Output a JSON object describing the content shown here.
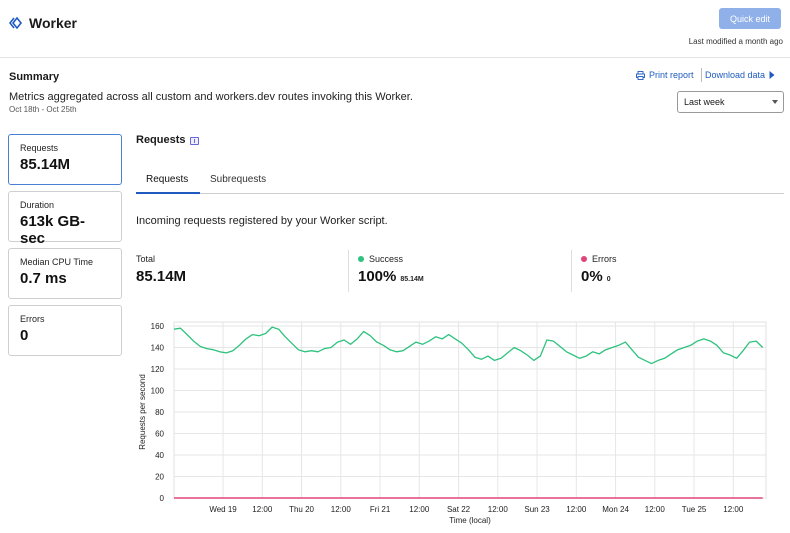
{
  "header": {
    "title": "Worker",
    "quick_edit_label": "Quick edit",
    "last_modified": "Last modified a month ago"
  },
  "summary": {
    "title": "Summary",
    "description": "Metrics aggregated across all custom and workers.dev routes invoking this Worker.",
    "dates": "Oct 18th - Oct 25th",
    "print_report_label": "Print report",
    "download_data_label": "Download data",
    "range_selected": "Last week"
  },
  "metrics": [
    {
      "label": "Requests",
      "value": "85.14M"
    },
    {
      "label": "Duration",
      "value": "613k GB-sec"
    },
    {
      "label": "Median CPU Time",
      "value": "0.7 ms"
    },
    {
      "label": "Errors",
      "value": "0"
    }
  ],
  "requests_panel": {
    "title": "Requests",
    "tabs": [
      "Requests",
      "Subrequests"
    ],
    "description": "Incoming requests registered by your Worker script.",
    "stats": {
      "total": {
        "label": "Total",
        "value": "85.14M"
      },
      "success": {
        "label": "Success",
        "value": "100%",
        "sub": "85.14M"
      },
      "errors": {
        "label": "Errors",
        "value": "0%",
        "sub": "0"
      }
    }
  },
  "colors": {
    "accent": "#1f5bc1",
    "success": "#2ec27e",
    "errors": "#e0457b",
    "quick_edit_bg": "#8fb0e8"
  },
  "chart_data": {
    "type": "line",
    "title": "",
    "xlabel": "Time (local)",
    "ylabel": "Requests per second",
    "ylim": [
      0,
      160
    ],
    "yticks": [
      0,
      20,
      40,
      60,
      80,
      100,
      120,
      140,
      160
    ],
    "xlim": [
      -15,
      166
    ],
    "x_ticks": [
      {
        "x": 0,
        "label": "Wed 19"
      },
      {
        "x": 12,
        "label": "12:00"
      },
      {
        "x": 24,
        "label": "Thu 20"
      },
      {
        "x": 36,
        "label": "12:00"
      },
      {
        "x": 48,
        "label": "Fri 21"
      },
      {
        "x": 60,
        "label": "12:00"
      },
      {
        "x": 72,
        "label": "Sat 22"
      },
      {
        "x": 84,
        "label": "12:00"
      },
      {
        "x": 96,
        "label": "Sun 23"
      },
      {
        "x": 108,
        "label": "12:00"
      },
      {
        "x": 120,
        "label": "Mon 24"
      },
      {
        "x": 132,
        "label": "12:00"
      },
      {
        "x": 144,
        "label": "Tue 25"
      },
      {
        "x": 156,
        "label": "12:00"
      }
    ],
    "series": [
      {
        "name": "Success",
        "color": "#2ec27e",
        "x": [
          -15,
          -13,
          -11,
          -9,
          -7,
          -5,
          -3,
          -1,
          1,
          3,
          5,
          7,
          9,
          11,
          13,
          15,
          17,
          19,
          21,
          23,
          25,
          27,
          29,
          31,
          33,
          35,
          37,
          39,
          41,
          43,
          45,
          47,
          49,
          51,
          53,
          55,
          57,
          59,
          61,
          63,
          65,
          67,
          69,
          71,
          73,
          75,
          77,
          79,
          81,
          83,
          85,
          87,
          89,
          91,
          93,
          95,
          97,
          99,
          101,
          103,
          105,
          107,
          109,
          111,
          113,
          115,
          117,
          119,
          121,
          123,
          125,
          127,
          129,
          131,
          133,
          135,
          137,
          139,
          141,
          143,
          145,
          147,
          149,
          151,
          153,
          155,
          157,
          159,
          161,
          163,
          165
        ],
        "y": [
          157,
          158,
          152,
          146,
          141,
          139,
          138,
          136,
          135,
          137,
          142,
          148,
          152,
          151,
          153,
          159,
          157,
          150,
          144,
          138,
          136,
          137,
          136,
          139,
          140,
          145,
          147,
          143,
          148,
          155,
          151,
          145,
          142,
          138,
          136,
          137,
          141,
          145,
          143,
          146,
          150,
          148,
          152,
          148,
          144,
          138,
          131,
          129,
          132,
          128,
          130,
          135,
          140,
          137,
          133,
          128,
          132,
          147,
          146,
          141,
          136,
          133,
          130,
          132,
          136,
          134,
          138,
          140,
          142,
          145,
          138,
          131,
          128,
          125,
          128,
          130,
          134,
          138,
          140,
          142,
          146,
          148,
          146,
          142,
          135,
          133,
          130,
          137,
          145,
          146,
          140
        ],
        "ylabel_note": "Requests per second"
      },
      {
        "name": "Errors",
        "color": "#e0457b",
        "x": [
          -15,
          165
        ],
        "y": [
          0,
          0
        ]
      }
    ]
  }
}
